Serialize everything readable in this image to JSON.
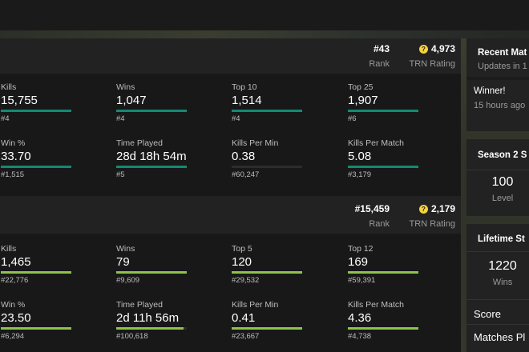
{
  "colors": {
    "green_bar": "#148a73",
    "lime_bar": "#8dc34a",
    "rating_icon": "#f5d13b"
  },
  "solo": {
    "rank": "#43",
    "rank_label": "Rank",
    "rating": "4,973",
    "rating_label": "TRN Rating",
    "rating_icon": "question-circle-icon",
    "stats": [
      {
        "label": "Kills",
        "value": "15,755",
        "rank": "#4",
        "fill": 1.0
      },
      {
        "label": "Wins",
        "value": "1,047",
        "rank": "#4",
        "fill": 1.0
      },
      {
        "label": "Top 10",
        "value": "1,514",
        "rank": "#4",
        "fill": 1.0
      },
      {
        "label": "Top 25",
        "value": "1,907",
        "rank": "#6",
        "fill": 1.0
      },
      {
        "label": "Win %",
        "value": "33.70",
        "rank": "#1,515",
        "fill": 1.0
      },
      {
        "label": "Time Played",
        "value": "28d 18h 54m",
        "rank": "#5",
        "fill": 1.0
      },
      {
        "label": "Kills Per Min",
        "value": "0.38",
        "rank": "#60,247",
        "fill": 0.0
      },
      {
        "label": "Kills Per Match",
        "value": "5.08",
        "rank": "#3,179",
        "fill": 1.0
      }
    ]
  },
  "duo": {
    "rank": "#15,459",
    "rank_label": "Rank",
    "rating": "2,179",
    "rating_label": "TRN Rating",
    "rating_icon": "question-circle-icon",
    "stats": [
      {
        "label": "Kills",
        "value": "1,465",
        "rank": "#22,776",
        "fill": 1.0
      },
      {
        "label": "Wins",
        "value": "79",
        "rank": "#9,609",
        "fill": 1.0
      },
      {
        "label": "Top 5",
        "value": "120",
        "rank": "#29,532",
        "fill": 1.0
      },
      {
        "label": "Top 12",
        "value": "169",
        "rank": "#59,391",
        "fill": 1.0
      },
      {
        "label": "Win %",
        "value": "23.50",
        "rank": "#6,294",
        "fill": 1.0
      },
      {
        "label": "Time Played",
        "value": "2d 11h 56m",
        "rank": "#100,618",
        "fill": 0.95
      },
      {
        "label": "Kills Per Min",
        "value": "0.41",
        "rank": "#23,667",
        "fill": 1.0
      },
      {
        "label": "Kills Per Match",
        "value": "4.36",
        "rank": "#4,738",
        "fill": 1.0
      }
    ]
  },
  "recent_matches": {
    "title": "Recent Mat",
    "subtitle": "Updates in 1",
    "result": "Winner!",
    "time": "15 hours ago"
  },
  "season": {
    "title": "Season 2 S",
    "value": "100",
    "label": "Level"
  },
  "lifetime": {
    "title": "Lifetime St",
    "value": "1220",
    "label": "Wins",
    "rows": [
      "Score",
      "Matches Pl"
    ]
  }
}
